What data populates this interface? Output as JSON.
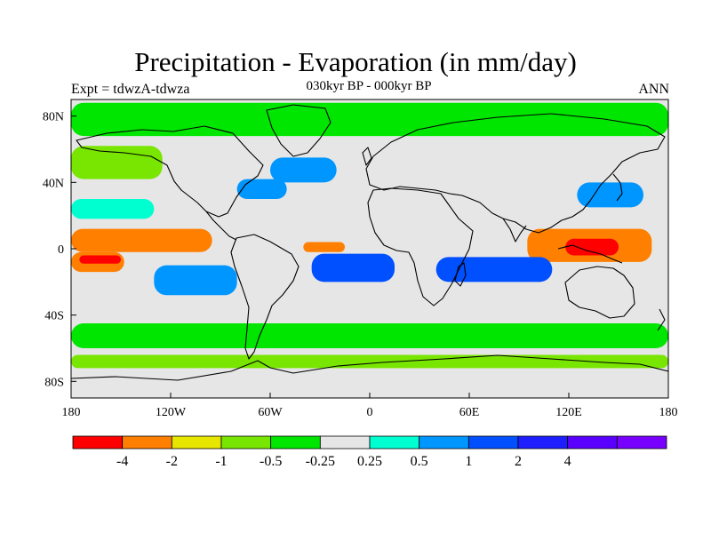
{
  "title": "Precipitation - Evaporation (in mm/day)",
  "subtitle": "030kyr BP - 000kyr BP",
  "experiment": "Expt = tdwzA-tdwza",
  "season": "ANN",
  "map": {
    "projection": "cylindrical equidistant",
    "lon_range": [
      -180,
      180
    ],
    "lat_range": [
      -90,
      90
    ],
    "background_color": "#e6e6e6",
    "x_ticks": [
      {
        "lon": -180,
        "label": "180"
      },
      {
        "lon": -120,
        "label": "120W"
      },
      {
        "lon": -60,
        "label": "60W"
      },
      {
        "lon": 0,
        "label": "0"
      },
      {
        "lon": 60,
        "label": "60E"
      },
      {
        "lon": 120,
        "label": "120E"
      },
      {
        "lon": 180,
        "label": "180"
      }
    ],
    "y_ticks": [
      {
        "lat": 80,
        "label": "80N"
      },
      {
        "lat": 40,
        "label": "40N"
      },
      {
        "lat": 0,
        "label": "0"
      },
      {
        "lat": -40,
        "label": "40S"
      },
      {
        "lat": -80,
        "label": "80S"
      }
    ],
    "features": [
      {
        "name": "equatorial-pacific-drying",
        "lon": [
          -180,
          -95
        ],
        "lat": [
          -2,
          12
        ],
        "color": "#ff7f00"
      },
      {
        "name": "south-pacific-drying",
        "lon": [
          -180,
          -148
        ],
        "lat": [
          -14,
          -2
        ],
        "color": "#ff7f00"
      },
      {
        "name": "south-pacific-red-core",
        "lon": [
          -175,
          -150
        ],
        "lat": [
          -9,
          -4
        ],
        "color": "#ff0000"
      },
      {
        "name": "indonesia-drying",
        "lon": [
          95,
          170
        ],
        "lat": [
          -8,
          12
        ],
        "color": "#ff7f00"
      },
      {
        "name": "indonesia-red-core",
        "lon": [
          118,
          150
        ],
        "lat": [
          -4,
          6
        ],
        "color": "#ff0000"
      },
      {
        "name": "tropical-atlantic-drying",
        "lon": [
          -40,
          -15
        ],
        "lat": [
          -2,
          4
        ],
        "color": "#ff7f00"
      },
      {
        "name": "south-atlantic-wetting",
        "lon": [
          -35,
          15
        ],
        "lat": [
          -20,
          -3
        ],
        "color": "#0050ff"
      },
      {
        "name": "south-indian-wetting",
        "lon": [
          40,
          110
        ],
        "lat": [
          -20,
          -5
        ],
        "color": "#0050ff"
      },
      {
        "name": "southeast-pacific-wetting",
        "lon": [
          -130,
          -80
        ],
        "lat": [
          -28,
          -10
        ],
        "color": "#0096ff"
      },
      {
        "name": "gulf-stream-wetting",
        "lon": [
          -80,
          -50
        ],
        "lat": [
          30,
          42
        ],
        "color": "#0096ff"
      },
      {
        "name": "north-atlantic-wetting",
        "lon": [
          -60,
          -20
        ],
        "lat": [
          40,
          55
        ],
        "color": "#0096ff"
      },
      {
        "name": "kuroshio-wetting",
        "lon": [
          125,
          165
        ],
        "lat": [
          25,
          40
        ],
        "color": "#0096ff"
      },
      {
        "name": "southern-ocean-drying",
        "lon": [
          -180,
          180
        ],
        "lat": [
          -60,
          -45
        ],
        "color": "#00e600"
      },
      {
        "name": "antarctic-coast-drying",
        "lon": [
          -180,
          180
        ],
        "lat": [
          -72,
          -64
        ],
        "color": "#78e600"
      },
      {
        "name": "arctic-drying",
        "lon": [
          -180,
          180
        ],
        "lat": [
          68,
          88
        ],
        "color": "#00e600"
      },
      {
        "name": "north-pacific-drying",
        "lon": [
          -180,
          -125
        ],
        "lat": [
          42,
          62
        ],
        "color": "#78e600"
      },
      {
        "name": "west-pacific-wetting",
        "lon": [
          -180,
          -130
        ],
        "lat": [
          18,
          30
        ],
        "color": "#00ffd0"
      }
    ]
  },
  "colorbar": {
    "colors": [
      "#ff0000",
      "#ff7f00",
      "#e6e600",
      "#78e600",
      "#00e600",
      "#e6e6e6",
      "#00ffd0",
      "#0096ff",
      "#0050ff",
      "#1e1eff",
      "#5a00ff",
      "#7800ff"
    ],
    "labels": [
      "-4",
      "-2",
      "-1",
      "-0.5",
      "-0.25",
      "0.25",
      "0.5",
      "1",
      "2",
      "4"
    ]
  }
}
